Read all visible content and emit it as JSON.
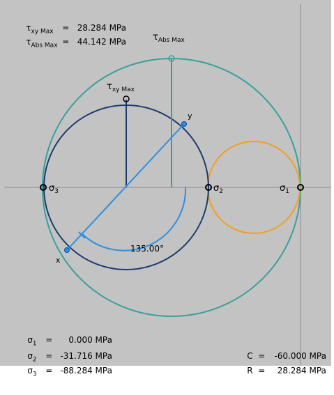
{
  "top_readouts": {
    "txy_symbol": "τ",
    "txy_sub": "xy Max",
    "txy_value": "28.284 MPa",
    "tabs_symbol": "τ",
    "tabs_sub": "Abs Max",
    "tabs_value": "44.142 MPa"
  },
  "bottom_left": {
    "s1_symbol": "σ",
    "s1_sub": "1",
    "s1_value": "0.000 MPa",
    "s2_symbol": "σ",
    "s2_sub": "2",
    "s2_value": "-31.716 MPa",
    "s3_symbol": "σ",
    "s3_sub": "3",
    "s3_value": "-88.284 MPa"
  },
  "bottom_right": {
    "c_label": "C",
    "c_value": "-60.000 MPa",
    "r_label": "R",
    "r_value": "28.284 MPa"
  },
  "diagram": {
    "angle_label": "135.00°",
    "txy_max_label": "τ",
    "txy_max_sub": "xy Max",
    "tabs_max_label": "τ",
    "tabs_max_sub": "Abs Max",
    "point_x_label": "x",
    "point_y_label": "y",
    "sigma3_label": "σ",
    "sigma3_sub": "3",
    "sigma2_label": "σ",
    "sigma2_sub": "2",
    "sigma1_label": "σ",
    "sigma1_sub": "1",
    "colors": {
      "large_circle": "#3a9f9b",
      "main_circle": "#1c3a6e",
      "small_circle": "#f0a01e",
      "diameter": "#2f8fe0",
      "axis": "#888888",
      "background": "#c3c3c3"
    }
  }
}
